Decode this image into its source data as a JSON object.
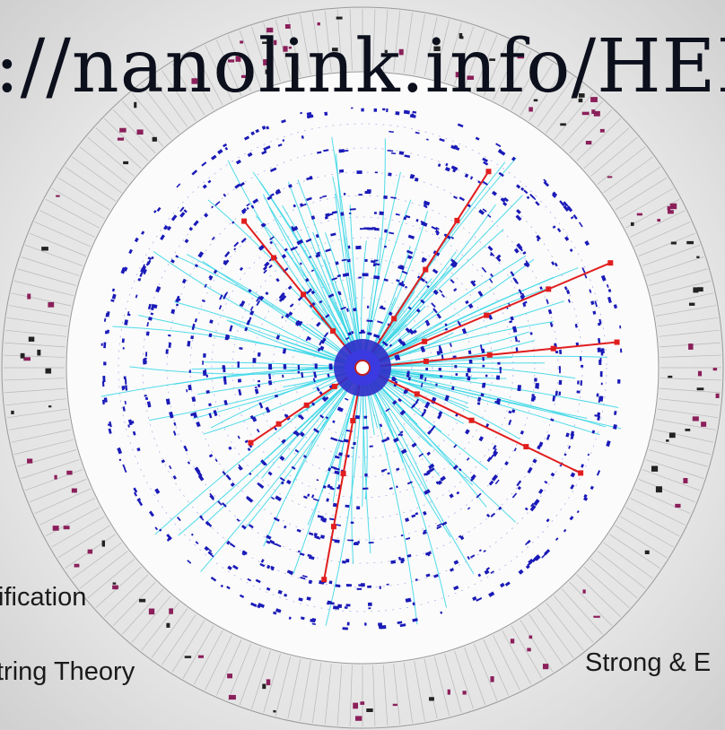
{
  "headline": "://nanolink.info/HEI",
  "labels": {
    "left_upper": "ification",
    "left_lower": "tring Theory",
    "right_lower": "Strong & E"
  },
  "visual": {
    "subject": "particle-collision-event-display",
    "colors": {
      "background": "#e6e6e6",
      "calorimeter_line": "#9a9a9a",
      "calorimeter_hit": "#8a1f5a",
      "track": "#33d6e6",
      "hit": "#1a1ab8",
      "highlight_track": "#e11e1e"
    }
  }
}
